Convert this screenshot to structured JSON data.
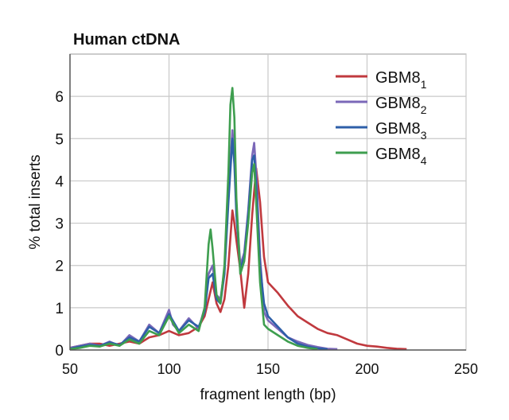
{
  "chart_data": {
    "type": "line",
    "title": "Human ctDNA",
    "xlabel": "fragment length (bp)",
    "ylabel": "% total inserts",
    "xlim": [
      50,
      250
    ],
    "ylim": [
      0,
      7
    ],
    "xticks": [
      50,
      100,
      150,
      200,
      250
    ],
    "yticks": [
      0,
      1,
      2,
      3,
      4,
      5,
      6
    ],
    "grid": true,
    "legend_position": "top-right",
    "series": [
      {
        "name": "GBM8",
        "subscript": "1",
        "color": "#c0393e",
        "x": [
          50,
          55,
          60,
          65,
          70,
          75,
          80,
          85,
          90,
          95,
          100,
          105,
          110,
          115,
          118,
          120,
          122,
          124,
          126,
          128,
          130,
          132,
          133,
          134,
          136,
          138,
          140,
          142,
          144,
          146,
          148,
          150,
          155,
          160,
          165,
          170,
          175,
          180,
          185,
          190,
          195,
          200,
          205,
          210,
          215,
          220
        ],
        "y": [
          0.05,
          0.1,
          0.15,
          0.15,
          0.1,
          0.15,
          0.2,
          0.15,
          0.3,
          0.35,
          0.45,
          0.35,
          0.4,
          0.55,
          0.8,
          1.2,
          1.6,
          1.1,
          0.9,
          1.2,
          2.0,
          3.3,
          3.0,
          2.6,
          1.9,
          1.0,
          1.8,
          3.2,
          4.3,
          3.5,
          2.2,
          1.6,
          1.35,
          1.05,
          0.8,
          0.65,
          0.5,
          0.4,
          0.35,
          0.25,
          0.15,
          0.1,
          0.08,
          0.05,
          0.03,
          0.02
        ]
      },
      {
        "name": "GBM8",
        "subscript": "2",
        "color": "#7b68b8",
        "x": [
          50,
          55,
          60,
          65,
          70,
          75,
          80,
          85,
          90,
          95,
          100,
          102,
          105,
          110,
          115,
          118,
          120,
          122,
          124,
          126,
          128,
          130,
          132,
          133,
          134,
          136,
          138,
          140,
          142,
          143,
          144,
          146,
          148,
          150,
          155,
          160,
          165,
          170,
          175,
          180,
          185
        ],
        "y": [
          0.05,
          0.1,
          0.15,
          0.1,
          0.2,
          0.1,
          0.35,
          0.2,
          0.6,
          0.4,
          0.95,
          0.6,
          0.45,
          0.75,
          0.5,
          1.0,
          1.8,
          2.0,
          1.3,
          1.2,
          1.9,
          3.7,
          5.2,
          4.6,
          3.4,
          2.0,
          2.3,
          3.3,
          4.6,
          4.9,
          4.2,
          2.2,
          0.9,
          0.7,
          0.5,
          0.3,
          0.2,
          0.12,
          0.07,
          0.03,
          0.02
        ]
      },
      {
        "name": "GBM8",
        "subscript": "3",
        "color": "#2e5fa8",
        "x": [
          50,
          55,
          60,
          65,
          70,
          75,
          80,
          85,
          90,
          95,
          100,
          105,
          110,
          115,
          118,
          120,
          122,
          124,
          126,
          128,
          130,
          132,
          133,
          134,
          136,
          138,
          140,
          142,
          143,
          144,
          146,
          148,
          150,
          155,
          160,
          165,
          170,
          175,
          180
        ],
        "y": [
          0.03,
          0.08,
          0.12,
          0.1,
          0.18,
          0.12,
          0.3,
          0.2,
          0.55,
          0.4,
          0.85,
          0.45,
          0.7,
          0.55,
          0.9,
          1.7,
          1.8,
          1.2,
          1.1,
          1.8,
          3.5,
          5.0,
          4.4,
          3.2,
          1.9,
          2.2,
          3.2,
          4.5,
          4.6,
          3.9,
          2.0,
          1.1,
          0.8,
          0.55,
          0.3,
          0.15,
          0.08,
          0.04,
          0.02
        ]
      },
      {
        "name": "GBM8",
        "subscript": "4",
        "color": "#3e9e4f",
        "x": [
          50,
          55,
          60,
          65,
          70,
          75,
          80,
          85,
          90,
          95,
          100,
          105,
          110,
          115,
          118,
          120,
          121,
          122,
          124,
          126,
          128,
          130,
          131,
          132,
          133,
          134,
          136,
          138,
          140,
          142,
          143,
          144,
          146,
          148,
          150,
          155,
          160,
          165,
          170,
          175
        ],
        "y": [
          0.02,
          0.05,
          0.1,
          0.08,
          0.15,
          0.1,
          0.25,
          0.15,
          0.45,
          0.35,
          0.8,
          0.4,
          0.6,
          0.45,
          1.0,
          2.5,
          2.85,
          2.4,
          1.3,
          1.1,
          2.0,
          4.2,
          5.8,
          6.2,
          5.5,
          3.6,
          1.8,
          2.1,
          3.0,
          4.2,
          4.4,
          3.5,
          1.6,
          0.6,
          0.5,
          0.35,
          0.2,
          0.1,
          0.05,
          0.02
        ]
      }
    ]
  }
}
